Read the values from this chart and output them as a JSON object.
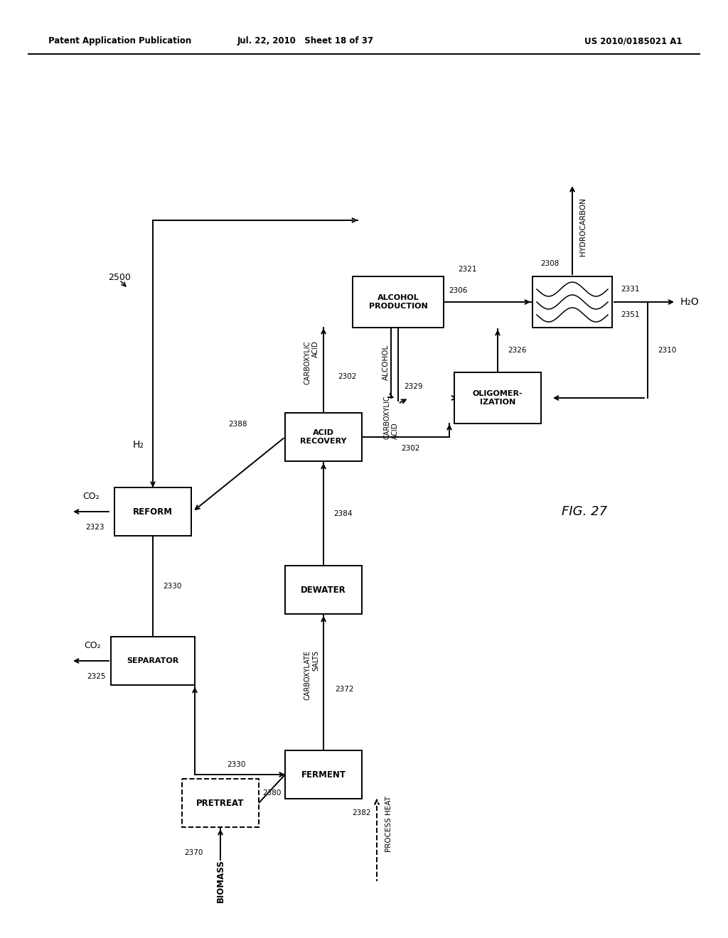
{
  "header_left": "Patent Application Publication",
  "header_mid": "Jul. 22, 2010   Sheet 18 of 37",
  "header_right": "US 2010/0185021 A1",
  "fig_label": "FIG. 27",
  "label_2500": "2500",
  "background": "#ffffff"
}
